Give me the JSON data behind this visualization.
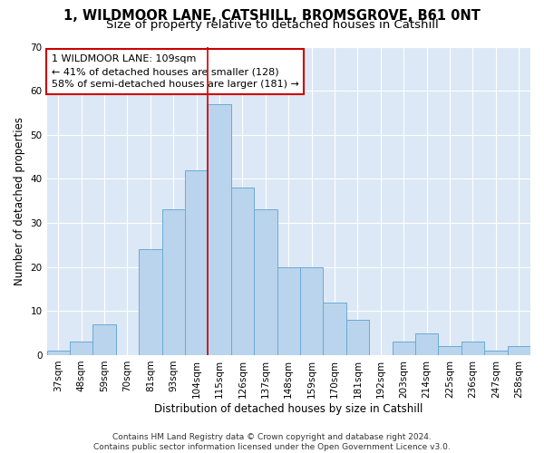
{
  "title1": "1, WILDMOOR LANE, CATSHILL, BROMSGROVE, B61 0NT",
  "title2": "Size of property relative to detached houses in Catshill",
  "xlabel": "Distribution of detached houses by size in Catshill",
  "ylabel": "Number of detached properties",
  "categories": [
    "37sqm",
    "48sqm",
    "59sqm",
    "70sqm",
    "81sqm",
    "93sqm",
    "104sqm",
    "115sqm",
    "126sqm",
    "137sqm",
    "148sqm",
    "159sqm",
    "170sqm",
    "181sqm",
    "192sqm",
    "203sqm",
    "214sqm",
    "225sqm",
    "236sqm",
    "247sqm",
    "258sqm"
  ],
  "values": [
    1,
    3,
    7,
    0,
    24,
    33,
    42,
    57,
    38,
    33,
    20,
    20,
    12,
    8,
    0,
    3,
    5,
    2,
    3,
    1,
    2
  ],
  "bar_color": "#bad4ed",
  "bar_edge_color": "#6aaad4",
  "vline_index": 6.5,
  "vline_color": "#cc0000",
  "annotation_text": "1 WILDMOOR LANE: 109sqm\n← 41% of detached houses are smaller (128)\n58% of semi-detached houses are larger (181) →",
  "annotation_box_color": "#cc0000",
  "ylim": [
    0,
    70
  ],
  "yticks": [
    0,
    10,
    20,
    30,
    40,
    50,
    60,
    70
  ],
  "background_color": "#dce8f5",
  "footer": "Contains HM Land Registry data © Crown copyright and database right 2024.\nContains public sector information licensed under the Open Government Licence v3.0.",
  "title_fontsize": 10.5,
  "subtitle_fontsize": 9.5,
  "axis_label_fontsize": 8.5,
  "tick_fontsize": 7.5,
  "annotation_fontsize": 8,
  "footer_fontsize": 6.5
}
